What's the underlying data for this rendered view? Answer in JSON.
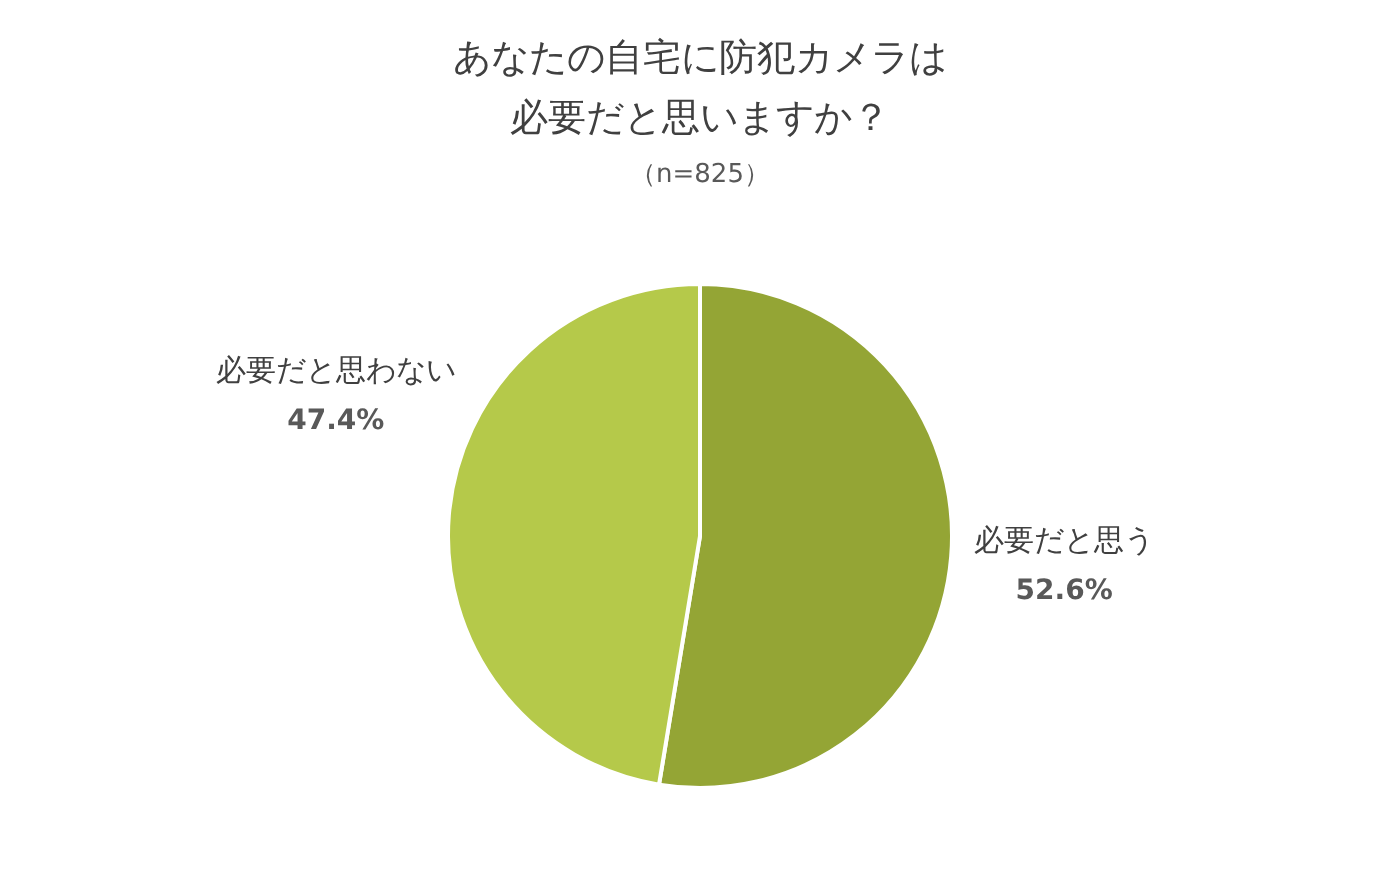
{
  "chart_data": {
    "type": "pie",
    "title": "あなたの自宅に防犯カメラは必要だと思いますか？",
    "subtitle": "（n=825）",
    "categories": [
      "必要だと思う",
      "必要だと思わない"
    ],
    "values": [
      52.6,
      47.4
    ],
    "value_labels": [
      "52.6%",
      "47.4%"
    ],
    "colors": [
      "#94a535",
      "#b5c94a"
    ],
    "legend": false
  }
}
